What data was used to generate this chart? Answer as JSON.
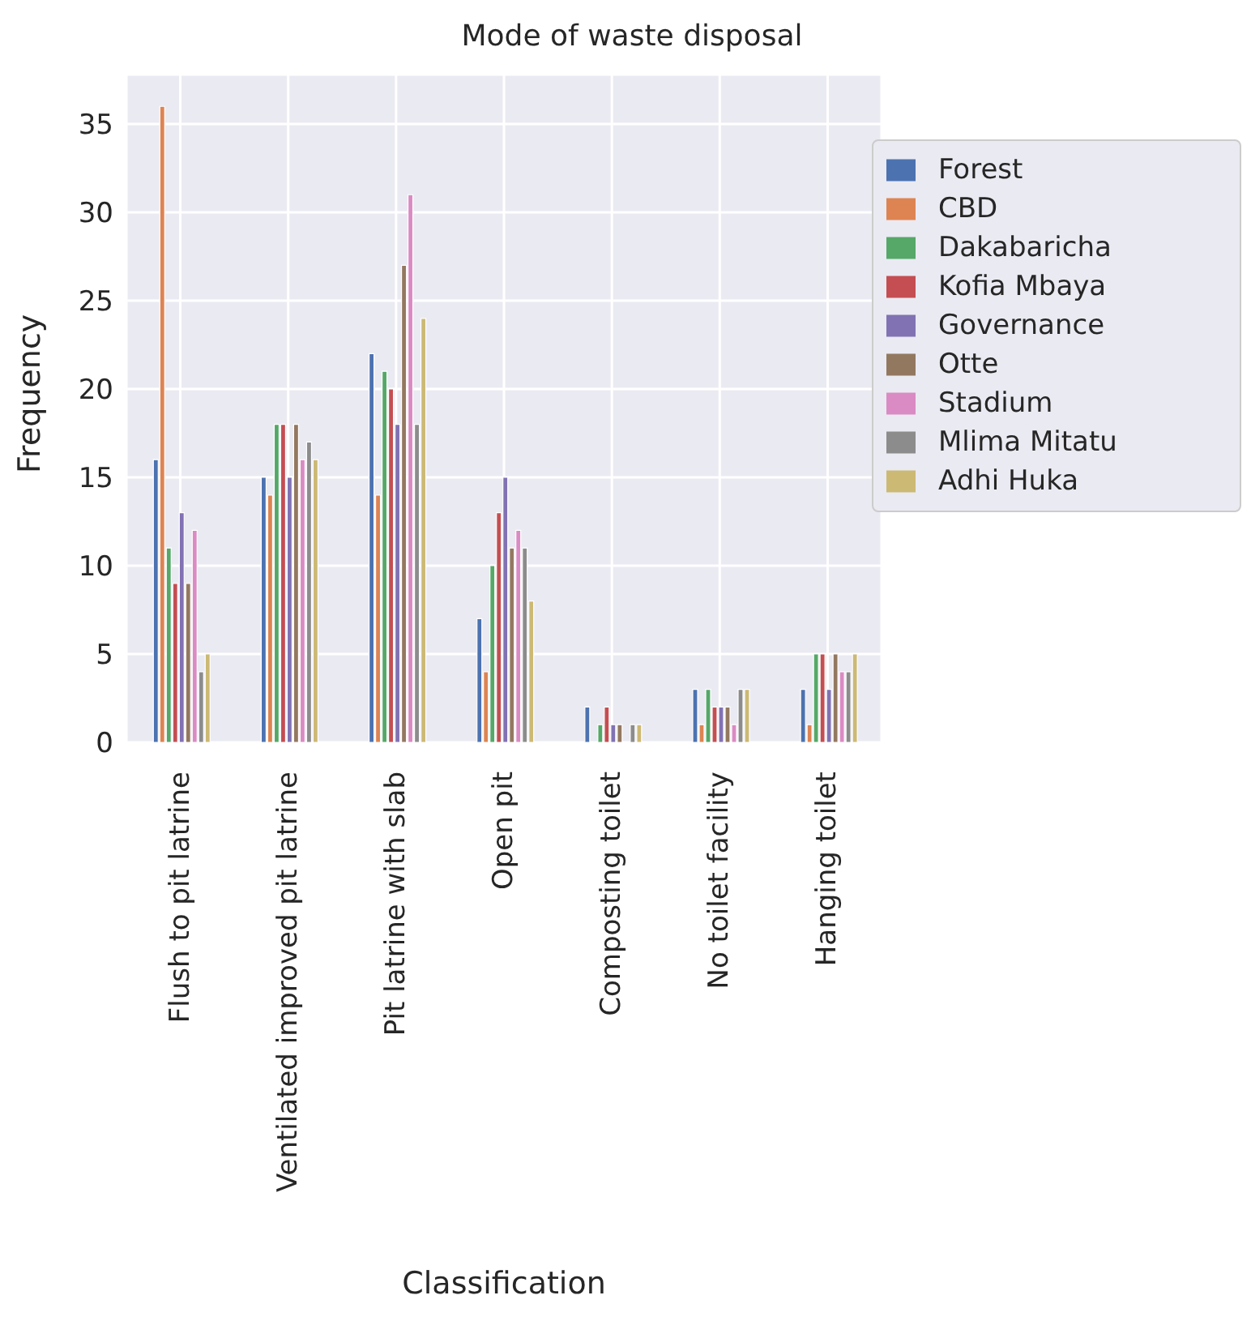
{
  "chart_data": {
    "type": "bar",
    "title": "Mode of waste disposal",
    "xlabel": "Classification",
    "ylabel": "Frequency",
    "categories": [
      "Flush to pit latrine",
      "Ventilated improved pit latrine",
      "Pit latrine with slab",
      "Open pit",
      "Composting toilet",
      "No toilet facility",
      "Hanging toilet"
    ],
    "series": [
      {
        "name": "Forest",
        "color": "#4c72b0",
        "values": [
          16,
          15,
          22,
          7,
          2,
          3,
          3
        ]
      },
      {
        "name": "CBD",
        "color": "#dd8452",
        "values": [
          36,
          14,
          14,
          4,
          0,
          1,
          1
        ]
      },
      {
        "name": "Dakabaricha",
        "color": "#55a868",
        "values": [
          11,
          18,
          21,
          10,
          1,
          3,
          5
        ]
      },
      {
        "name": "Kofia Mbaya",
        "color": "#c44e52",
        "values": [
          9,
          18,
          20,
          13,
          2,
          2,
          5
        ]
      },
      {
        "name": "Governance",
        "color": "#8172b3",
        "values": [
          13,
          15,
          18,
          15,
          1,
          2,
          3
        ]
      },
      {
        "name": "Otte",
        "color": "#937860",
        "values": [
          9,
          18,
          27,
          11,
          1,
          2,
          5
        ]
      },
      {
        "name": "Stadium",
        "color": "#da8bc3",
        "values": [
          12,
          16,
          31,
          12,
          0,
          1,
          4
        ]
      },
      {
        "name": "Mlima Mitatu",
        "color": "#8c8c8c",
        "values": [
          4,
          17,
          18,
          11,
          1,
          3,
          4
        ]
      },
      {
        "name": "Adhi Huka",
        "color": "#ccb974",
        "values": [
          5,
          16,
          24,
          8,
          1,
          3,
          5
        ]
      }
    ],
    "ylim": [
      0,
      37.8
    ],
    "yticks": [
      0,
      5,
      10,
      15,
      20,
      25,
      30,
      35
    ],
    "grid": true,
    "legend": "top right"
  }
}
